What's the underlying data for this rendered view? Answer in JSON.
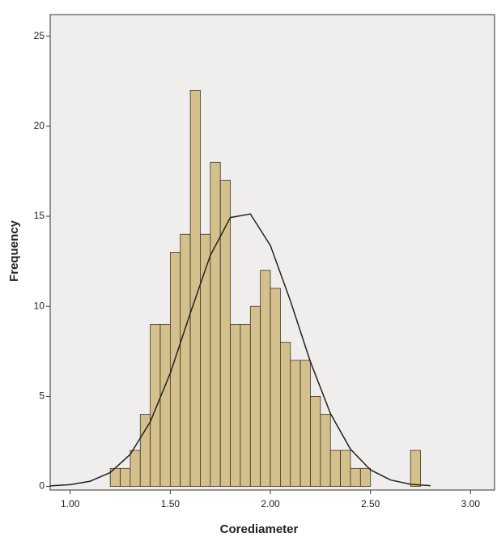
{
  "chart_data": {
    "type": "histogram",
    "x_label": "Corediameter",
    "y_label": "Frequency",
    "bins": [
      1.2,
      1.25,
      1.3,
      1.35,
      1.4,
      1.45,
      1.5,
      1.55,
      1.6,
      1.65,
      1.7,
      1.75,
      1.8,
      1.85,
      1.9,
      1.95,
      2.0,
      2.05,
      2.1,
      2.15,
      2.2,
      2.25,
      2.3,
      2.35,
      2.4,
      2.45,
      2.5,
      2.55,
      2.6,
      2.65,
      2.7,
      2.75
    ],
    "counts": [
      1,
      1,
      2,
      4,
      9,
      9,
      13,
      14,
      22,
      14,
      18,
      17,
      9,
      9,
      10,
      12,
      11,
      8,
      7,
      7,
      5,
      4,
      2,
      2,
      1,
      1,
      0,
      0,
      0,
      0,
      2
    ],
    "color": "#d4c08c",
    "curve": {
      "x": [
        0.9,
        1.0,
        1.1,
        1.2,
        1.3,
        1.4,
        1.5,
        1.6,
        1.7,
        1.8,
        1.9,
        2.0,
        2.1,
        2.2,
        2.3,
        2.4,
        2.5,
        2.6,
        2.7,
        2.8
      ],
      "y": [
        0.03,
        0.1,
        0.29,
        0.77,
        1.78,
        3.59,
        6.29,
        9.62,
        12.83,
        14.93,
        15.13,
        13.38,
        10.31,
        6.92,
        4.05,
        2.07,
        0.92,
        0.36,
        0.12,
        0.04
      ],
      "color": "#222222"
    },
    "xlim": [
      0.9,
      3.12
    ],
    "ylim": [
      -0.2,
      26.2
    ],
    "xticks": [
      {
        "value": 1,
        "label": "1.00"
      },
      {
        "value": 1.5,
        "label": "1.50"
      },
      {
        "value": 2,
        "label": "2.00"
      },
      {
        "value": 2.5,
        "label": "2.50"
      },
      {
        "value": 3,
        "label": "3.00"
      }
    ],
    "yticks": [
      0,
      5,
      10,
      15,
      20,
      25
    ]
  }
}
